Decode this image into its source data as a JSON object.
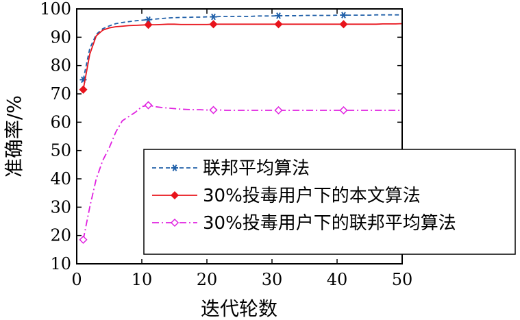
{
  "chart_data": {
    "type": "line",
    "xlabel": "迭代轮数",
    "ylabel": "准确率/%",
    "xlim": [
      0,
      50
    ],
    "ylim": [
      10,
      100
    ],
    "xticks": [
      0,
      10,
      20,
      30,
      40,
      50
    ],
    "yticks": [
      10,
      20,
      30,
      40,
      50,
      60,
      70,
      80,
      90,
      100
    ],
    "grid": false,
    "legend_position": "center-right",
    "series": [
      {
        "name": "联邦平均算法",
        "color": "#1f5fa8",
        "line_style": "dashed",
        "marker": "asterisk",
        "x": [
          1,
          2,
          3,
          4,
          5,
          6,
          7,
          8,
          9,
          10,
          11,
          12,
          13,
          14,
          15,
          16,
          17,
          18,
          19,
          20,
          21,
          22,
          23,
          24,
          25,
          26,
          27,
          28,
          29,
          30,
          31,
          32,
          33,
          34,
          35,
          36,
          37,
          38,
          39,
          40,
          41,
          42,
          43,
          44,
          45,
          46,
          47,
          48,
          49,
          50
        ],
        "y": [
          75,
          86,
          91,
          93,
          94,
          94.8,
          95.2,
          95.5,
          95.8,
          96,
          96.2,
          96.4,
          96.6,
          96.8,
          96.9,
          97,
          97,
          97.1,
          97.1,
          97.2,
          97.2,
          97.3,
          97.3,
          97.3,
          97.4,
          97.3,
          97.4,
          97.5,
          97.5,
          97.5,
          97.6,
          97.6,
          97.6,
          97.6,
          97.7,
          97.7,
          97.7,
          97.7,
          97.7,
          97.8,
          97.8,
          97.8,
          97.8,
          97.8,
          97.8,
          97.9,
          97.9,
          97.9,
          97.9,
          97.9
        ],
        "marker_x": [
          1,
          11,
          21,
          31,
          41
        ]
      },
      {
        "name": "30%投毒用户下的本文算法",
        "color": "#e8141c",
        "line_style": "solid",
        "marker": "filled-diamond",
        "x": [
          1,
          2,
          3,
          4,
          5,
          6,
          7,
          8,
          9,
          10,
          11,
          12,
          13,
          14,
          15,
          16,
          17,
          18,
          19,
          20,
          21,
          22,
          23,
          24,
          25,
          26,
          27,
          28,
          29,
          30,
          31,
          32,
          33,
          34,
          35,
          36,
          37,
          38,
          39,
          40,
          41,
          42,
          43,
          44,
          45,
          46,
          47,
          48,
          49,
          50
        ],
        "y": [
          71.5,
          84,
          90.5,
          92.5,
          93.3,
          93.7,
          93.9,
          94.1,
          94.2,
          94.3,
          94.4,
          94.4,
          94.5,
          94.6,
          94.6,
          94.5,
          94.5,
          94.5,
          94.5,
          94.5,
          94.6,
          94.6,
          94.6,
          94.6,
          94.6,
          94.6,
          94.6,
          94.6,
          94.6,
          94.6,
          94.6,
          94.6,
          94.6,
          94.6,
          94.6,
          94.6,
          94.6,
          94.6,
          94.6,
          94.6,
          94.6,
          94.6,
          94.6,
          94.6,
          94.6,
          94.6,
          94.7,
          94.7,
          94.7,
          94.8
        ],
        "marker_x": [
          1,
          11,
          21,
          31,
          41
        ]
      },
      {
        "name": "30%投毒用户下的联邦平均算法",
        "color": "#e020e0",
        "line_style": "dash-dot",
        "marker": "open-diamond",
        "x": [
          1,
          2,
          3,
          4,
          5,
          6,
          7,
          8,
          9,
          10,
          11,
          12,
          13,
          14,
          15,
          16,
          17,
          18,
          19,
          20,
          21,
          22,
          23,
          24,
          25,
          26,
          27,
          28,
          29,
          30,
          31,
          32,
          33,
          34,
          35,
          36,
          37,
          38,
          39,
          40,
          41,
          42,
          43,
          44,
          45,
          46,
          47,
          48,
          49,
          50
        ],
        "y": [
          18.5,
          30,
          40,
          46.5,
          51,
          56.5,
          60.5,
          62,
          63.5,
          65.5,
          66,
          65.5,
          65.2,
          65,
          64.8,
          64.6,
          64.5,
          64.4,
          64.4,
          64.3,
          64.3,
          64.3,
          64.2,
          64.2,
          64.2,
          64.2,
          64.2,
          64.2,
          64.2,
          64.2,
          64.2,
          64.2,
          64.2,
          64.2,
          64.2,
          64.2,
          64.2,
          64.2,
          64.2,
          64.2,
          64.2,
          64.2,
          64.2,
          64.2,
          64.2,
          64.2,
          64.2,
          64.2,
          64.2,
          64.2
        ],
        "marker_x": [
          1,
          11,
          21,
          31,
          41
        ]
      }
    ]
  }
}
